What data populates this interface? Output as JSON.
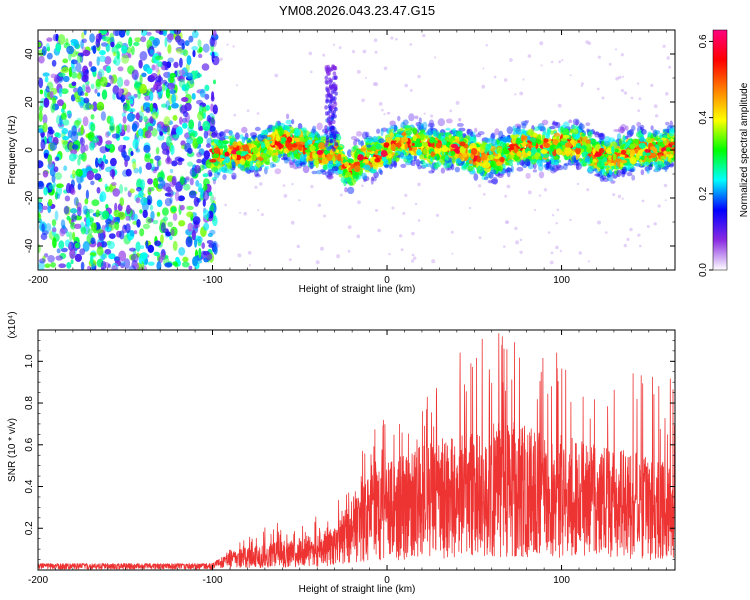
{
  "title": "YM08.2026.043.23.47.G15",
  "chart_data": [
    {
      "type": "heatmap",
      "name": "spectrogram",
      "title": "YM08.2026.043.23.47.G15",
      "xlabel": "Height of straight line (km)",
      "ylabel": "Frequency (Hz)",
      "xlim": [
        -200,
        165
      ],
      "ylim": [
        -50,
        50
      ],
      "x_ticks": [
        "-200",
        "-100",
        "0",
        "100"
      ],
      "y_ticks": [
        "40",
        "20",
        "0",
        "-20",
        "-40"
      ],
      "colorbar": {
        "label": "Normalized spectral amplitude",
        "range": [
          0.0,
          0.63
        ],
        "ticks": [
          "0.6",
          "0.4",
          "0.2",
          "0.0"
        ],
        "colors": [
          "#ffffff",
          "#8a2be2",
          "#0000ff",
          "#00ffff",
          "#00ff00",
          "#ffff00",
          "#ff8000",
          "#ff0000",
          "#ff0080"
        ]
      },
      "regions": [
        {
          "x_range": [
            -200,
            -100
          ],
          "description_value": "broadband noise",
          "freq_range": [
            -50,
            50
          ],
          "amplitude": 0.1
        },
        {
          "x_range": [
            -100,
            165
          ],
          "freq_range": [
            -12,
            12
          ],
          "amplitude_peak": 0.6
        }
      ],
      "spike": {
        "x": -32,
        "freq_range": [
          0,
          35
        ]
      },
      "dip": {
        "x": -22,
        "freq": -8
      }
    },
    {
      "type": "line",
      "name": "snr",
      "xlabel": "Height of straight line (km)",
      "ylabel": "SNR (10 * v/v)",
      "y_multiplier": "(x10⁴)",
      "xlim": [
        -200,
        165
      ],
      "ylim": [
        0,
        1.15
      ],
      "x_ticks": [
        "-200",
        "-100",
        "0",
        "100"
      ],
      "y_ticks": [
        "1.0",
        "0.8",
        "0.6",
        "0.4",
        "0.2"
      ],
      "color": "#ee3333",
      "envelope": [
        {
          "x": -200,
          "mean": 0.02,
          "max": 0.03
        },
        {
          "x": -100,
          "mean": 0.02,
          "max": 0.03
        },
        {
          "x": -90,
          "mean": 0.05,
          "max": 0.1
        },
        {
          "x": -75,
          "mean": 0.07,
          "max": 0.2
        },
        {
          "x": -50,
          "mean": 0.09,
          "max": 0.25
        },
        {
          "x": -30,
          "mean": 0.12,
          "max": 0.3
        },
        {
          "x": -15,
          "mean": 0.25,
          "max": 0.6
        },
        {
          "x": 0,
          "mean": 0.3,
          "max": 0.75
        },
        {
          "x": 20,
          "mean": 0.35,
          "max": 0.8
        },
        {
          "x": 45,
          "mean": 0.4,
          "max": 1.1
        },
        {
          "x": 70,
          "mean": 0.42,
          "max": 1.15
        },
        {
          "x": 100,
          "mean": 0.38,
          "max": 1.05
        },
        {
          "x": 130,
          "mean": 0.35,
          "max": 0.95
        },
        {
          "x": 165,
          "mean": 0.3,
          "max": 0.95
        }
      ]
    }
  ]
}
